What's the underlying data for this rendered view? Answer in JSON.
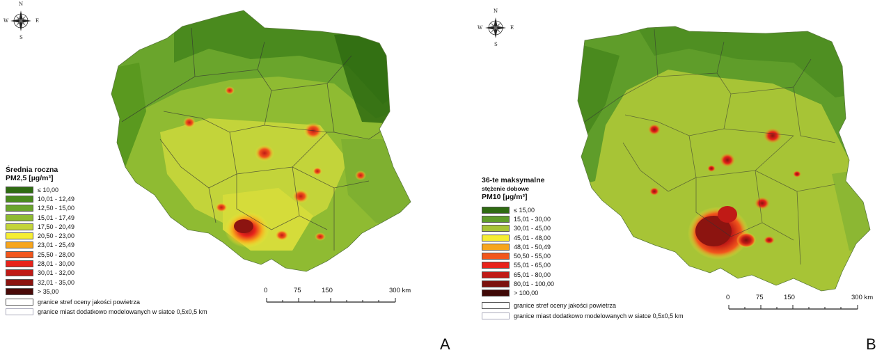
{
  "panel_a": {
    "letter": "A",
    "legend_title_1": "Średnia roczna",
    "legend_title_2": "PM2,5 [µg/m³]",
    "classes": [
      {
        "label": "≤ 10,00",
        "color": "#2f6b12"
      },
      {
        "label": "10,01 - 12,49",
        "color": "#4a8a1e"
      },
      {
        "label": "12,50 - 15,00",
        "color": "#6aa52c"
      },
      {
        "label": "15,01 - 17,49",
        "color": "#8fbb32"
      },
      {
        "label": "17,50 - 20,49",
        "color": "#c3d43a"
      },
      {
        "label": "20,50 - 23,00",
        "color": "#f6ee34"
      },
      {
        "label": "23,01 - 25,49",
        "color": "#f7a51c"
      },
      {
        "label": "25,50 - 28,00",
        "color": "#f2561c"
      },
      {
        "label": "28,01 - 30,00",
        "color": "#e8231b"
      },
      {
        "label": "30,01 - 32,00",
        "color": "#c01a16"
      },
      {
        "label": "32,01 - 35,00",
        "color": "#8c1410"
      },
      {
        "label": "> 35,00",
        "color": "#4a0a08"
      }
    ],
    "boundary_1": "granice stref oceny jakości powietrza",
    "boundary_2": "granice miast dodatkowo modelowanych w siatce 0,5x0,5 km",
    "scale": [
      "0",
      "75",
      "150",
      "300 km"
    ]
  },
  "panel_b": {
    "letter": "B",
    "legend_title_1": "36-te maksymalne",
    "legend_title_2": "stężenie dobowe",
    "legend_title_3": "PM10 [µg/m³]",
    "classes": [
      {
        "label": "≤ 15,00",
        "color": "#2f6b12"
      },
      {
        "label": "15,01 - 30,00",
        "color": "#5f9d2a"
      },
      {
        "label": "30,01 - 45,00",
        "color": "#a7c436"
      },
      {
        "label": "45,01 - 48,00",
        "color": "#f6ee34"
      },
      {
        "label": "48,01 - 50,49",
        "color": "#f7a51c"
      },
      {
        "label": "50,50 - 55,00",
        "color": "#f2561c"
      },
      {
        "label": "55,01 - 65,00",
        "color": "#e8231b"
      },
      {
        "label": "65,01 - 80,00",
        "color": "#c01a16"
      },
      {
        "label": "80,01 - 100,00",
        "color": "#7c120e"
      },
      {
        "label": "> 100,00",
        "color": "#3e0806"
      }
    ],
    "boundary_1": "granice stref oceny jakości powietrza",
    "boundary_2": "granice miast dodatkowo modelowanych w siatce 0,5x0,5 km",
    "scale": [
      "0",
      "75",
      "150",
      "300 km"
    ]
  },
  "compass_labels": {
    "n": "N",
    "s": "S",
    "e": "E",
    "w": "W"
  }
}
